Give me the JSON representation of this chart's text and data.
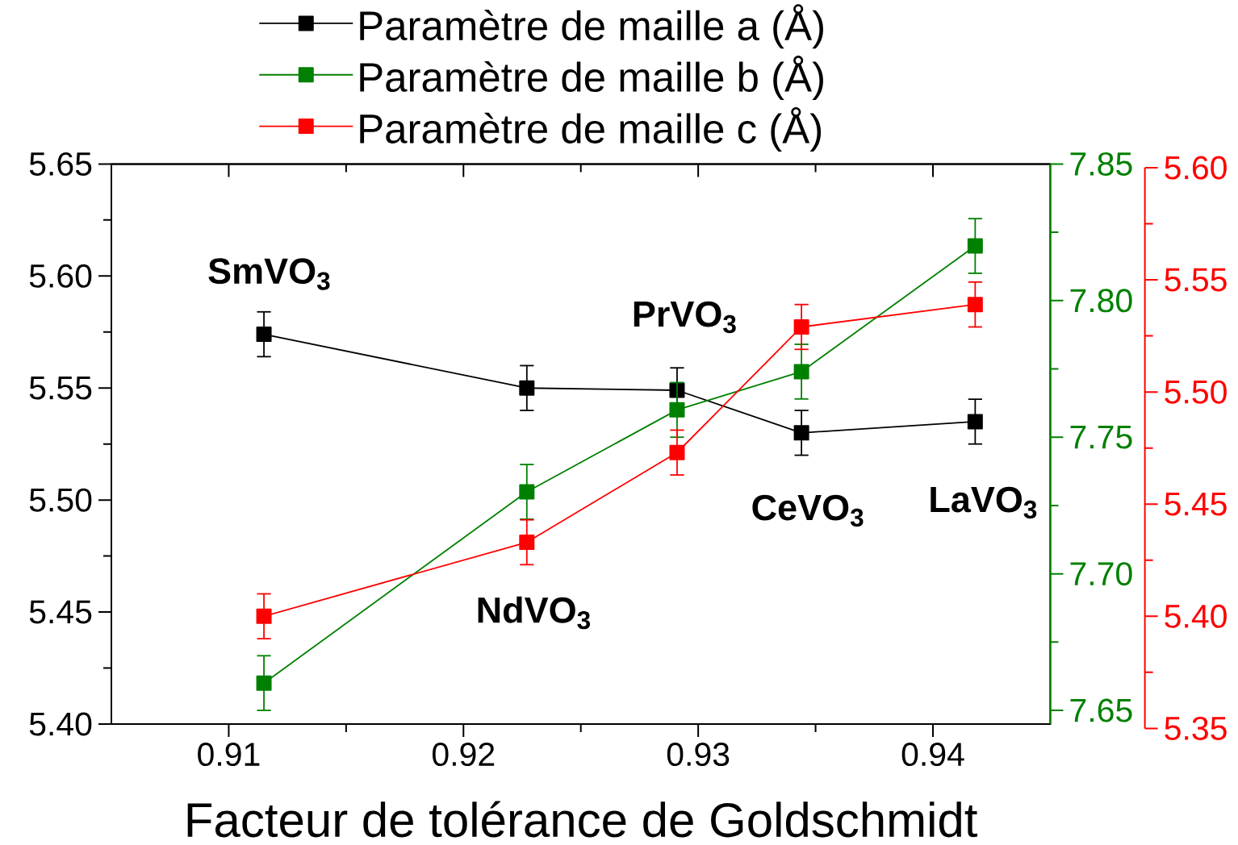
{
  "chart_data": {
    "type": "line",
    "xlabel": "Facteur de tolérance de Goldschmidt",
    "x": [
      0.9115,
      0.9227,
      0.9291,
      0.9344,
      0.9418
    ],
    "xlim": [
      0.905,
      0.945
    ],
    "xticks": [
      0.91,
      0.92,
      0.93,
      0.94
    ],
    "ylim": [
      5.4,
      5.65
    ],
    "yticks": [
      {
        "value": 5.4,
        "label": "5.40"
      },
      5.45,
      {
        "value": 5.5,
        "label": "5.50"
      },
      5.55,
      {
        "value": 5.6,
        "label": "5.60"
      },
      5.65
    ],
    "y2lim": [
      7.645,
      7.85
    ],
    "y2ticks": [
      7.65,
      {
        "value": 7.7,
        "label": "7.70"
      },
      7.75,
      {
        "value": 7.8,
        "label": "7.80"
      },
      7.85
    ],
    "y3lim": [
      5.35,
      5.6
    ],
    "y3ticks": [
      5.35,
      {
        "value": 5.4,
        "label": "5.40"
      },
      5.45,
      {
        "value": 5.5,
        "label": "5.50"
      },
      5.55,
      {
        "value": 5.6,
        "label": "5.60"
      }
    ],
    "marker": "square",
    "legend": "top",
    "series": [
      {
        "name": "Paramètre de maille a (Å)",
        "color": "#000000",
        "values": [
          5.574,
          5.55,
          5.549,
          5.53,
          5.535
        ],
        "errors": [
          0.01,
          0.01,
          0.01,
          0.01,
          0.01
        ]
      },
      {
        "name": "Paramètre de maille b (Å)",
        "color": "#008000",
        "axis": "y2",
        "values": [
          7.66,
          7.73,
          7.76,
          7.774,
          7.82
        ],
        "errors": [
          0.01,
          0.01,
          0.01,
          0.01,
          0.01
        ]
      },
      {
        "name": "Paramètre de maille c (Å)",
        "color": "#ff0000",
        "axis": "y3",
        "values": [
          5.4,
          5.433,
          5.473,
          5.529,
          5.539
        ],
        "errors": [
          0.01,
          0.01,
          0.01,
          0.01,
          0.01
        ]
      }
    ],
    "annotations": [
      "SmVO$_{3}$",
      "NdVO$_{3}$",
      "PrVO$_{3}$",
      "CeVO$_{3}$",
      "LaVO$_{3}$"
    ]
  }
}
